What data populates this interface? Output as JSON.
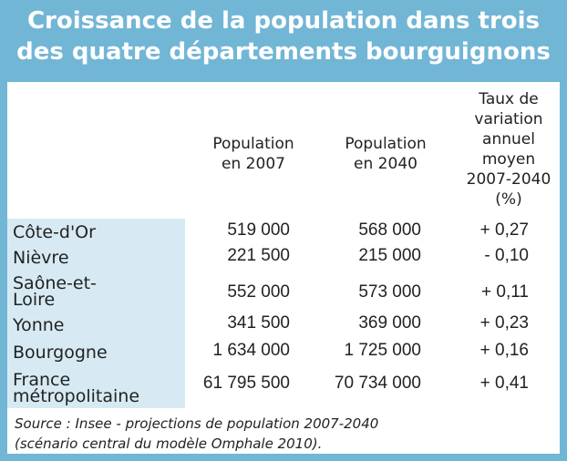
{
  "title": {
    "line1": "Croissance de la population dans trois",
    "line2": "des quatre départements bourguignons"
  },
  "headers": {
    "pop2007": [
      "Population",
      "en 2007"
    ],
    "pop2040": [
      "Population",
      "en 2040"
    ],
    "taux": [
      "Taux de",
      "variation",
      "annuel",
      "moyen",
      "2007-2040",
      "(%)"
    ]
  },
  "rows": [
    {
      "label": [
        "Côte-d'Or"
      ],
      "pop2007": "519 000",
      "pop2040": "568 000",
      "taux": "+ 0,27"
    },
    {
      "label": [
        "Nièvre"
      ],
      "pop2007": "221 500",
      "pop2040": "215 000",
      "taux": "- 0,10"
    },
    {
      "label": [
        "Saône-et-",
        "Loire"
      ],
      "pop2007": "552 000",
      "pop2040": "573 000",
      "taux": "+ 0,11"
    },
    {
      "label": [
        "Yonne"
      ],
      "pop2007": "341 500",
      "pop2040": "369 000",
      "taux": "+ 0,23"
    },
    {
      "label": [
        "Bourgogne"
      ],
      "pop2007": "1 634 000",
      "pop2040": "1 725 000",
      "taux": "+ 0,16"
    },
    {
      "label": [
        "France",
        "métropolitaine"
      ],
      "pop2007": "61 795 500",
      "pop2040": "70 734 000",
      "taux": "+ 0,41"
    }
  ],
  "source": {
    "line1": "Source : Insee - projections de population 2007-2040",
    "line2": "(scénario central du modèle Omphale 2010)."
  },
  "colors": {
    "frame": "#72b6d6",
    "label_column": "#d7eaf3",
    "title_text": "#ffffff"
  }
}
